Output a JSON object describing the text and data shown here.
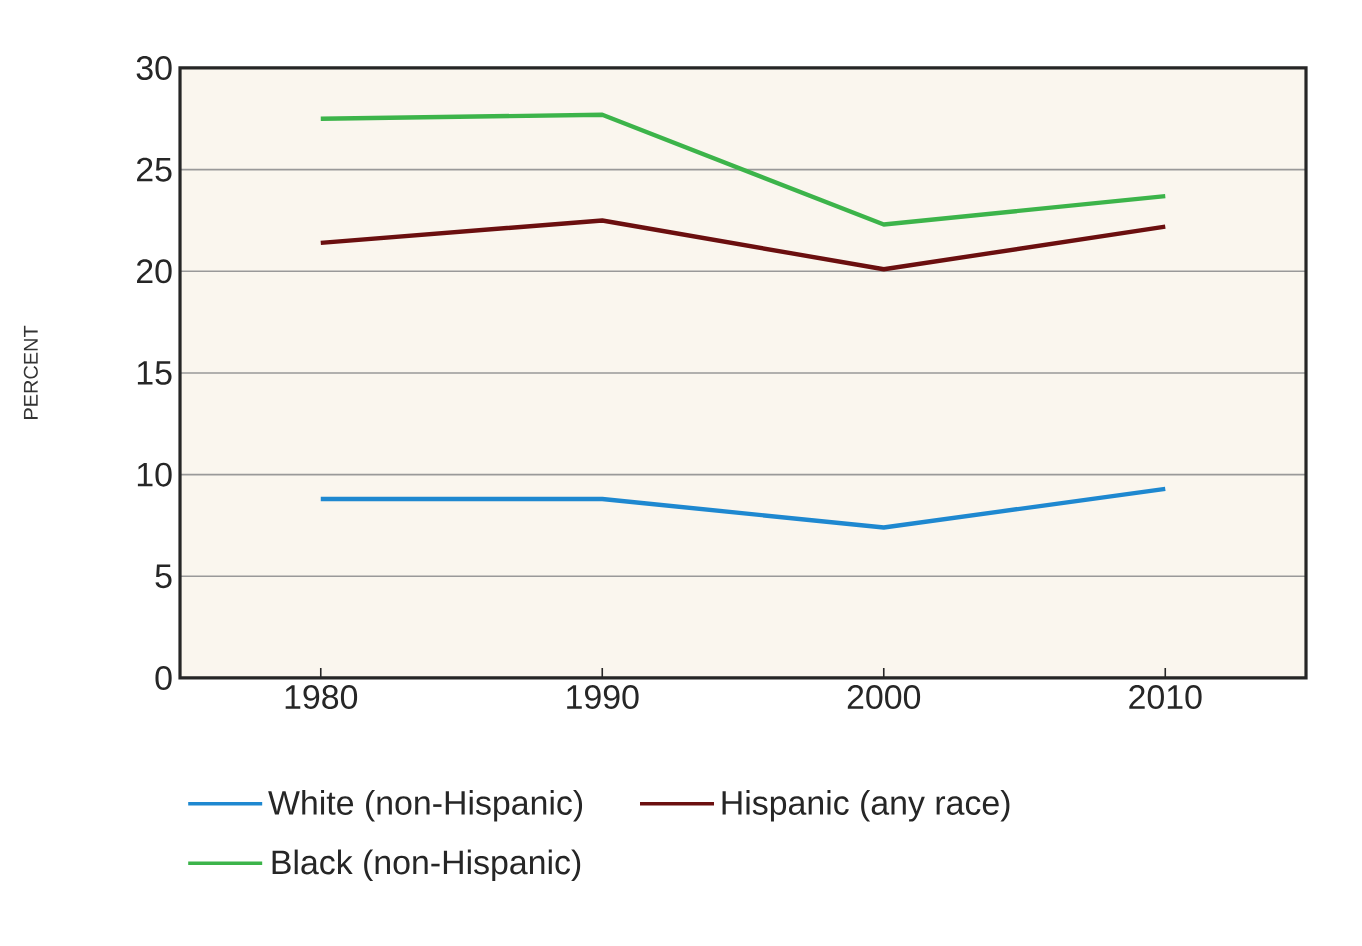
{
  "chart_data": {
    "type": "line",
    "ylabel": "PERCENT",
    "x": [
      1980,
      1990,
      2000,
      2010
    ],
    "xlim": [
      1975,
      2015
    ],
    "xticks": [
      1980,
      1990,
      2000,
      2010
    ],
    "ylim": [
      0,
      30
    ],
    "yticks": [
      0,
      5,
      10,
      15,
      20,
      25,
      30
    ],
    "grid": "y",
    "legend": "bottom",
    "marker": "none",
    "line_style": "solid",
    "series": [
      {
        "name": "White (non-Hispanic)",
        "color": "#1e88d0",
        "values": [
          8.8,
          8.8,
          7.4,
          9.3
        ]
      },
      {
        "name": "Hispanic (any race)",
        "color": "#6b0f0f",
        "values": [
          21.4,
          22.5,
          20.1,
          22.2
        ]
      },
      {
        "name": "Black (non-Hispanic)",
        "color": "#3cb44a",
        "values": [
          27.5,
          27.7,
          22.3,
          23.7
        ]
      }
    ]
  }
}
